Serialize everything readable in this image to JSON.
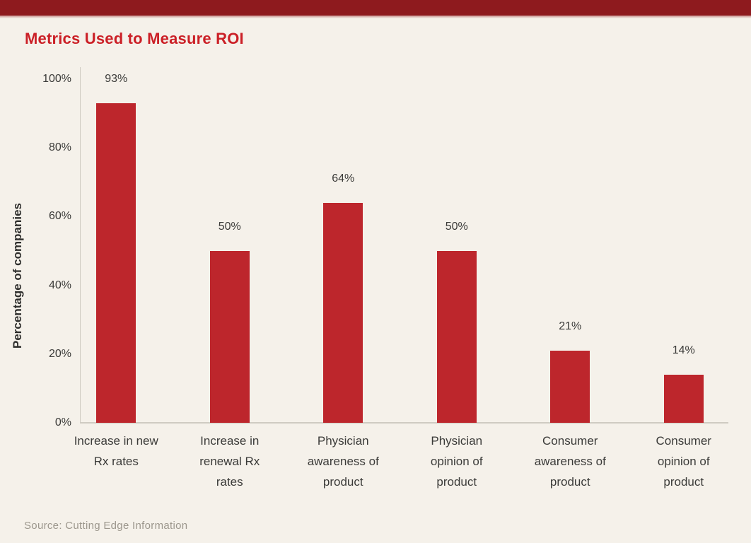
{
  "page": {
    "title": "Metrics Used to Measure ROI",
    "source_note": "Source: Cutting Edge Information"
  },
  "colors": {
    "banner": "#8E1A1E",
    "bar": "#BD262C",
    "title": "#CB2027",
    "background": "#F5F1EA",
    "axis_line": "#CFCBC2",
    "text": "#3B3B39",
    "source_text": "#9C978D"
  },
  "chart_data": {
    "type": "bar",
    "title": "Metrics Used to Measure ROI",
    "xlabel": "",
    "ylabel": "Percentage of companies",
    "categories": [
      "Increase in new\nRx rates",
      "Increase in\nrenewal Rx\nrates",
      "Physician\nawareness of\nproduct",
      "Physician\nopinion of\nproduct",
      "Consumer\nawareness of\nproduct",
      "Consumer\nopinion of\nproduct"
    ],
    "values": [
      93,
      50,
      64,
      50,
      21,
      14
    ],
    "value_labels": [
      "93%",
      "50%",
      "64%",
      "50%",
      "21%",
      "14%"
    ],
    "yticks": [
      0,
      20,
      40,
      60,
      80,
      100
    ],
    "ytick_labels": [
      "0%",
      "20%",
      "40%",
      "60%",
      "80%",
      "100%"
    ],
    "ylim": [
      0,
      100
    ],
    "grid": false,
    "legend_position": "none",
    "source": "Source: Cutting Edge Information"
  }
}
